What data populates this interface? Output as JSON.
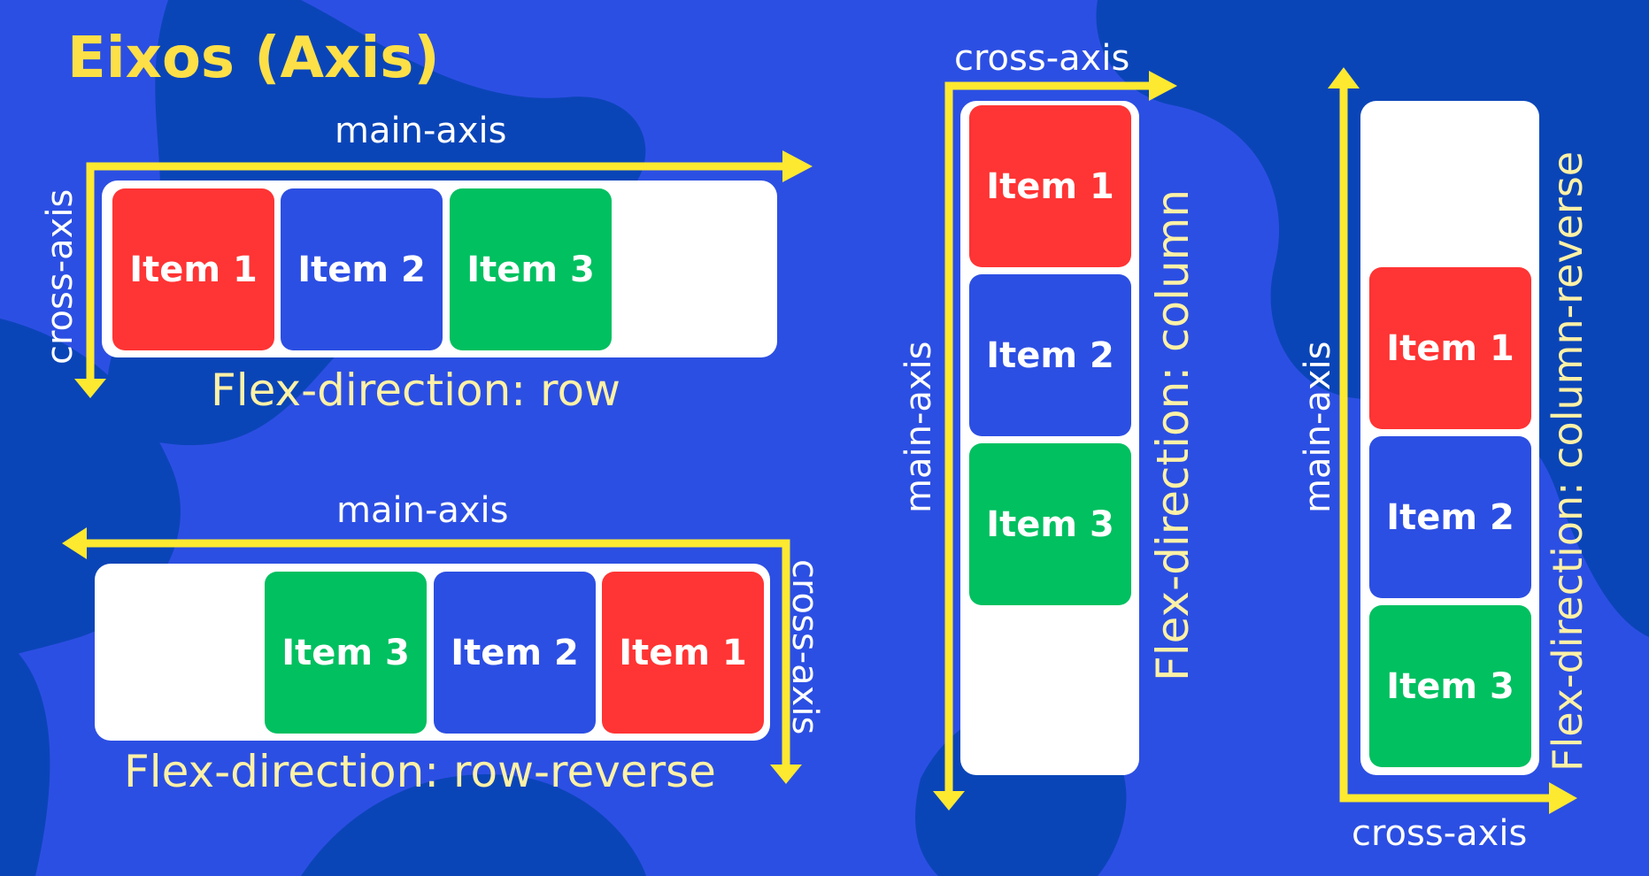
{
  "title": "Eixos (Axis)",
  "axis": {
    "main": "main-axis",
    "cross": "cross-axis"
  },
  "item_labels": [
    "Item 1",
    "Item 2",
    "Item 3"
  ],
  "diagrams": {
    "row": {
      "caption": "Flex-direction: row"
    },
    "row_reverse": {
      "caption": "Flex-direction: row-reverse"
    },
    "column": {
      "caption": "Flex-direction: column"
    },
    "column_reverse": {
      "caption": "Flex-direction: column-reverse"
    }
  },
  "colors": {
    "background": "#2c4fe3",
    "blob": "#0a45b8",
    "title": "#fde047",
    "arrow": "#fde930",
    "caption": "#fdf1a6",
    "item1": "#ff3434",
    "item2": "#2c4fe3",
    "item3": "#00c060",
    "container": "#ffffff"
  }
}
